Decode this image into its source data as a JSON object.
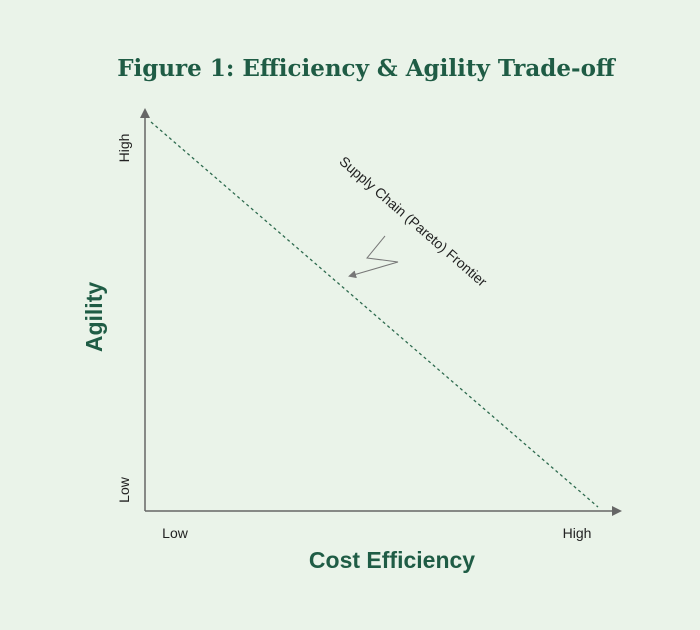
{
  "title": "Figure 1: Efficiency & Agility Trade-off",
  "axes": {
    "y": {
      "label": "Agility",
      "high": "High",
      "low": "Low"
    },
    "x": {
      "label": "Cost Efficiency",
      "low": "Low",
      "high": "High"
    }
  },
  "annotation": "Supply Chain (Pareto) Frontier"
}
